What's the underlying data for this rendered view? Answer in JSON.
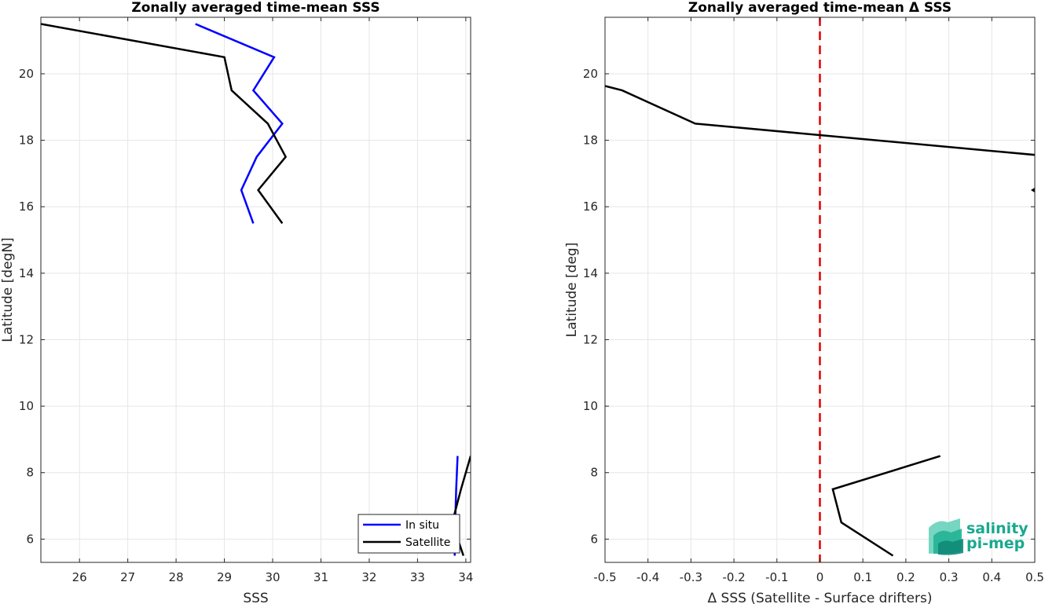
{
  "colors": {
    "in_situ": "#0000ff",
    "satellite": "#000000",
    "zero_line": "#e00000",
    "grid": "#e6e6e6",
    "brand": "#19a98f"
  },
  "brand": {
    "line1": "salinity",
    "line2": "pi-mep"
  },
  "chart_data": [
    {
      "type": "line",
      "title": "Zonally averaged time-mean SSS",
      "xlabel": "SSS",
      "ylabel": "Latitude [degN]",
      "xlim": [
        25.2,
        34.1
      ],
      "ylim": [
        5.3,
        21.7
      ],
      "xticks": [
        26,
        27,
        28,
        29,
        30,
        31,
        32,
        33,
        34
      ],
      "yticks": [
        6,
        8,
        10,
        12,
        14,
        16,
        18,
        20
      ],
      "grid": true,
      "legend": {
        "placement": "bottom-right",
        "entries": [
          "In situ",
          "Satellite"
        ]
      },
      "series": [
        {
          "name": "In situ",
          "color_key": "in_situ",
          "segments": [
            [
              [
                28.4,
                21.5
              ],
              [
                30.03,
                20.5
              ],
              [
                29.6,
                19.5
              ],
              [
                30.2,
                18.5
              ],
              [
                29.67,
                17.5
              ],
              [
                29.35,
                16.5
              ],
              [
                29.6,
                15.5
              ]
            ],
            [
              [
                33.83,
                8.5
              ],
              [
                33.8,
                7.5
              ],
              [
                33.78,
                6.5
              ],
              [
                33.77,
                5.5
              ]
            ]
          ]
        },
        {
          "name": "Satellite",
          "color_key": "satellite",
          "segments": [
            [
              [
                25.2,
                21.5
              ],
              [
                29.0,
                20.5
              ],
              [
                29.15,
                19.5
              ],
              [
                29.9,
                18.5
              ],
              [
                30.27,
                17.5
              ],
              [
                29.7,
                16.5
              ],
              [
                30.2,
                15.5
              ]
            ],
            [
              [
                34.1,
                8.5
              ],
              [
                33.9,
                7.5
              ],
              [
                33.72,
                6.5
              ],
              [
                33.95,
                5.5
              ]
            ]
          ]
        }
      ]
    },
    {
      "type": "line",
      "title": "Zonally averaged time-mean Δ SSS",
      "xlabel": "Δ SSS (Satellite - Surface drifters)",
      "ylabel": "Latitude [deg]",
      "xlim": [
        -0.5,
        0.5
      ],
      "ylim": [
        5.3,
        21.7
      ],
      "xticks": [
        -0.5,
        -0.4,
        -0.3,
        -0.2,
        -0.1,
        0,
        0.1,
        0.2,
        0.3,
        0.4,
        0.5
      ],
      "yticks": [
        6,
        8,
        10,
        12,
        14,
        16,
        18,
        20
      ],
      "grid": true,
      "reference_line": {
        "x": 0,
        "style": "dashed",
        "color_key": "zero_line"
      },
      "series": [
        {
          "color_key": "satellite",
          "segments": [
            [
              [
                -0.55,
                19.8
              ],
              [
                -0.46,
                19.5
              ],
              [
                -0.29,
                18.5
              ],
              [
                0.55,
                17.5
              ]
            ],
            [
              [
                0.52,
                16.7
              ],
              [
                0.495,
                16.5
              ],
              [
                0.52,
                16.3
              ]
            ],
            [
              [
                0.28,
                8.5
              ],
              [
                0.03,
                7.5
              ],
              [
                0.05,
                6.5
              ],
              [
                0.17,
                5.5
              ]
            ]
          ]
        }
      ]
    }
  ]
}
